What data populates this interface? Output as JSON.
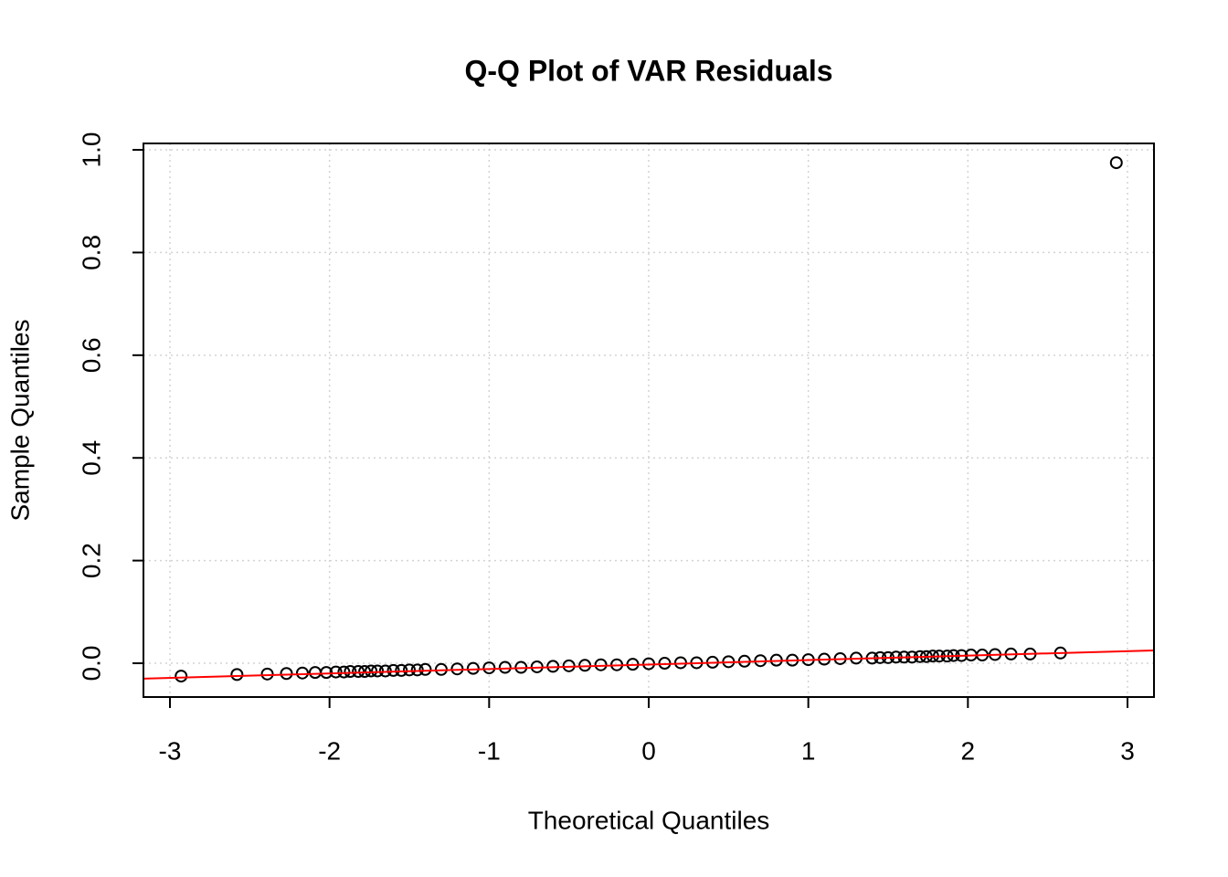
{
  "chart_data": {
    "type": "scatter",
    "title": "Q-Q Plot of VAR Residuals",
    "x_label": "Theoretical Quantiles",
    "y_label": "Sample Quantiles",
    "x": [
      -2.93,
      -2.58,
      -2.39,
      -2.27,
      -2.17,
      -2.09,
      -2.02,
      -1.96,
      -1.91,
      -1.87,
      -1.82,
      -1.78,
      -1.74,
      -1.7,
      -1.65,
      -1.6,
      -1.55,
      -1.5,
      -1.45,
      -1.4,
      -1.3,
      -1.2,
      -1.1,
      -1.0,
      -0.9,
      -0.8,
      -0.7,
      -0.6,
      -0.5,
      -0.4,
      -0.3,
      -0.2,
      -0.1,
      0,
      0.1,
      0.2,
      0.3,
      0.4,
      0.5,
      0.6,
      0.7,
      0.8,
      0.9,
      1.0,
      1.1,
      1.2,
      1.3,
      1.4,
      1.45,
      1.5,
      1.55,
      1.6,
      1.65,
      1.7,
      1.74,
      1.78,
      1.82,
      1.87,
      1.91,
      1.96,
      2.02,
      2.09,
      2.17,
      2.27,
      2.39,
      2.58,
      2.93
    ],
    "values": [
      -0.025,
      -0.022,
      -0.021,
      -0.02,
      -0.019,
      -0.018,
      -0.018,
      -0.017,
      -0.017,
      -0.016,
      -0.016,
      -0.016,
      -0.015,
      -0.015,
      -0.015,
      -0.014,
      -0.014,
      -0.013,
      -0.013,
      -0.012,
      -0.012,
      -0.011,
      -0.01,
      -0.009,
      -0.008,
      -0.008,
      -0.007,
      -0.006,
      -0.005,
      -0.004,
      -0.003,
      -0.003,
      -0.002,
      -0.001,
      0.0,
      0.001,
      0.001,
      0.002,
      0.003,
      0.004,
      0.005,
      0.006,
      0.006,
      0.007,
      0.008,
      0.009,
      0.01,
      0.01,
      0.011,
      0.011,
      0.012,
      0.012,
      0.012,
      0.013,
      0.013,
      0.014,
      0.014,
      0.014,
      0.015,
      0.015,
      0.016,
      0.016,
      0.017,
      0.018,
      0.018,
      0.02,
      0.975
    ],
    "color": "#000000",
    "reference_line": {
      "color": "#ff0000",
      "x": [
        -3.166,
        3.166
      ],
      "y": [
        -0.03,
        0.025
      ]
    },
    "xlim": [
      -3.166,
      3.166
    ],
    "xticks": [
      -3,
      -2,
      -1,
      0,
      1,
      2,
      3
    ],
    "ylim": [
      -0.0658,
      1.0125
    ],
    "yticks": [
      {
        "value": 0,
        "label": "0.0"
      },
      0.2,
      0.4,
      0.6,
      0.8,
      {
        "value": 1,
        "label": "1.0"
      }
    ],
    "grid": true
  }
}
